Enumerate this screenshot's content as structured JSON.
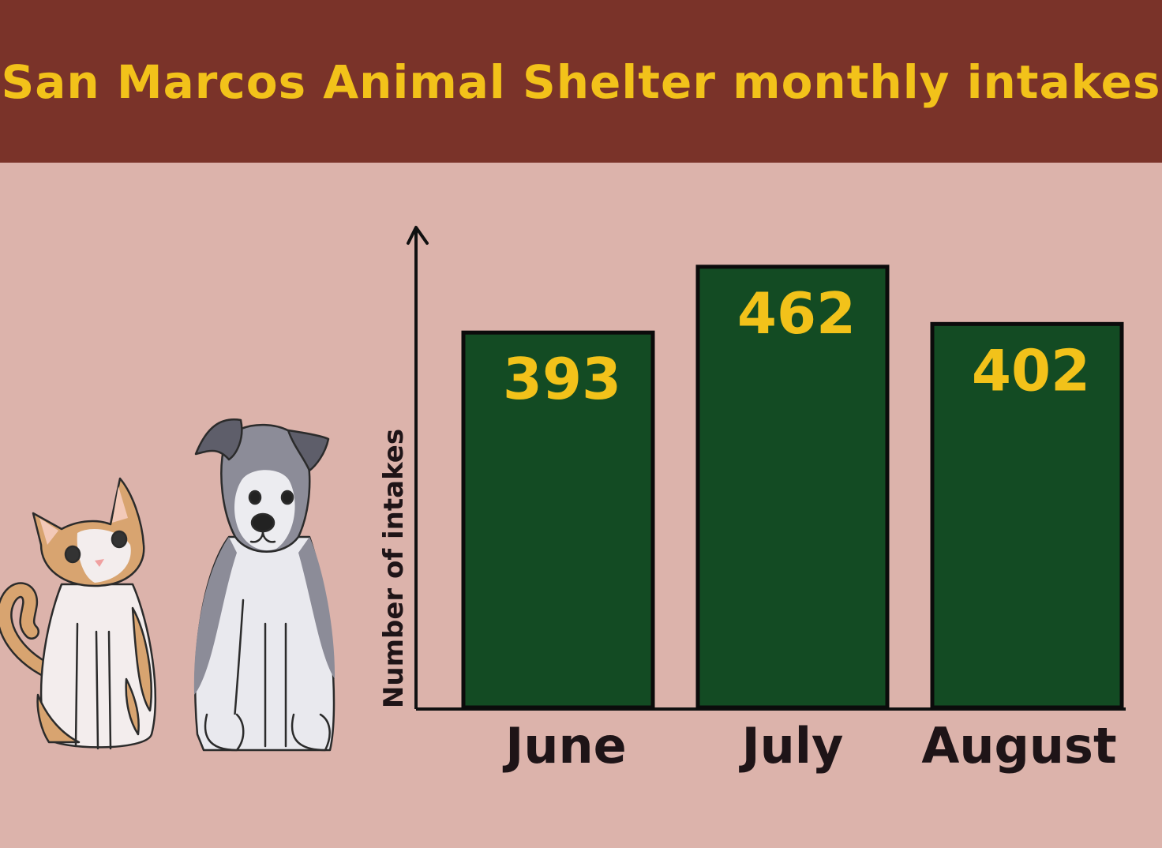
{
  "colors": {
    "background": "#dcb3ab",
    "header": "#7a3329",
    "title": "#f2c21a",
    "bar_fill": "#134b23",
    "bar_label": "#f2c21a",
    "axis": "#111111",
    "category_label": "#1e1417"
  },
  "illustrations": [
    "cat",
    "dog"
  ],
  "chart_data": {
    "type": "bar",
    "title": "San Marcos Animal Shelter monthly intakes",
    "xlabel": "",
    "ylabel": "Number of intakes",
    "categories": [
      "June",
      "July",
      "August"
    ],
    "values": [
      393,
      462,
      402
    ],
    "ylim": [
      0,
      490
    ],
    "grid": false,
    "legend": "none",
    "data_labels": true
  }
}
